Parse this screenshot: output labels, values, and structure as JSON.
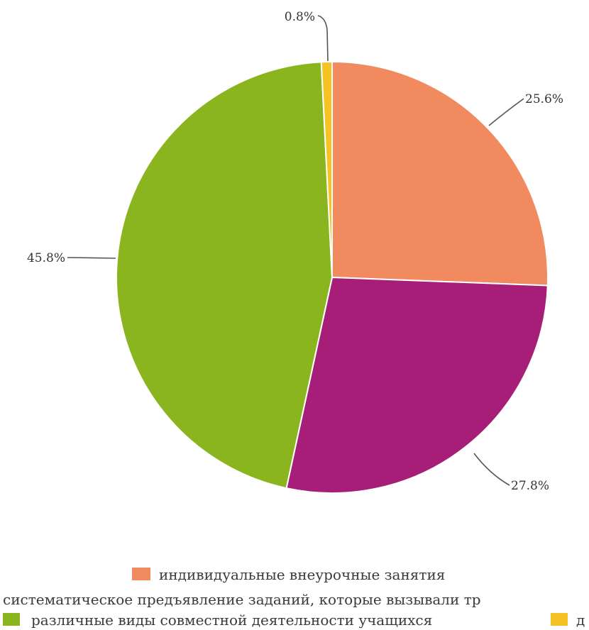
{
  "chart_data": {
    "type": "pie",
    "title": "",
    "slices": [
      {
        "label": "индивидуальные внеурочные занятия",
        "value": 25.6,
        "display": "25.6%",
        "color": "#F18A5E"
      },
      {
        "label": "систематическое предъявление заданий, которые вызывали тр",
        "value": 27.8,
        "display": "27.8%",
        "color": "#A61E78"
      },
      {
        "label": "различные виды совместной деятельности учащихся",
        "value": 45.8,
        "display": "45.8%",
        "color": "#8BB51F"
      },
      {
        "label": "д",
        "value": 0.8,
        "display": "0.8%",
        "color": "#F6C324"
      }
    ],
    "legend_position": "bottom"
  }
}
